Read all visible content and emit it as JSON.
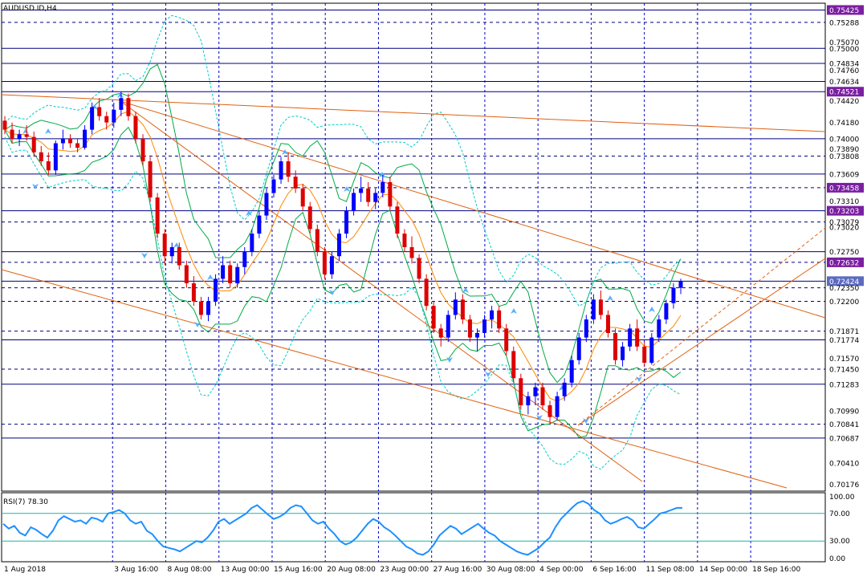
{
  "chart_data": {
    "type": "candlestick",
    "title": "AUDUSD.ID,H4",
    "symbol": "AUDUSD.ID",
    "timeframe": "H4",
    "price_axis": {
      "ylim": [
        0.701,
        0.755
      ],
      "tick_labels": [
        "0.75425",
        "0.75288",
        "0.75070",
        "0.75000",
        "0.74834",
        "0.74760",
        "0.74634",
        "0.74521",
        "0.74420",
        "0.74180",
        "0.74000",
        "0.73890",
        "0.73808",
        "0.73609",
        "0.73458",
        "0.73310",
        "0.73203",
        "0.73079",
        "0.73020",
        "0.72750",
        "0.72632",
        "0.72424",
        "0.72350",
        "0.72200",
        "0.71871",
        "0.71774",
        "0.71570",
        "0.71450",
        "0.71283",
        "0.70990",
        "0.70841",
        "0.70687",
        "0.70410",
        "0.70176"
      ],
      "highlighted_levels": [
        {
          "label": "0.75425",
          "color": "#7b1fa2"
        },
        {
          "label": "0.74521",
          "color": "#7b1fa2"
        },
        {
          "label": "0.73458",
          "color": "#7b1fa2"
        },
        {
          "label": "0.73203",
          "color": "#7b1fa2"
        },
        {
          "label": "0.72632",
          "color": "#7b1fa2"
        },
        {
          "label": "0.72424",
          "color": "#5c6bc0"
        }
      ],
      "current_price": "0.72424"
    },
    "time_axis": {
      "tick_labels": [
        "1 Aug 2018",
        "3 Aug 16:00",
        "8 Aug 08:00",
        "13 Aug 00:00",
        "15 Aug 16:00",
        "20 Aug 08:00",
        "23 Aug 00:00",
        "27 Aug 16:00",
        "30 Aug 08:00",
        "4 Sep 00:00",
        "6 Sep 16:00",
        "11 Sep 08:00",
        "14 Sep 00:00",
        "18 Sep 16:00"
      ]
    },
    "horizontal_levels_solid": [
      0.75425,
      0.75,
      0.74834,
      0.74634,
      0.74521,
      0.74,
      0.73609,
      0.73203,
      0.7275,
      0.72424,
      0.71774,
      0.71283,
      0.70687
    ],
    "horizontal_levels_dashed": [
      0.75288,
      0.73808,
      0.73458,
      0.73079,
      0.72632,
      0.7235,
      0.722,
      0.71871,
      0.7145,
      0.70841
    ],
    "rsi": {
      "label": "RSI(7) 78.30",
      "ylim": [
        0,
        100
      ],
      "levels": [
        30,
        70
      ],
      "tick_labels": [
        "100.00",
        "70.00",
        "30.00",
        "0.00"
      ],
      "values": [
        55,
        48,
        52,
        42,
        38,
        50,
        46,
        40,
        35,
        45,
        60,
        66,
        62,
        58,
        60,
        55,
        64,
        62,
        58,
        70,
        72,
        75,
        70,
        60,
        55,
        58,
        45,
        40,
        30,
        22,
        20,
        18,
        15,
        20,
        25,
        30,
        28,
        35,
        45,
        58,
        62,
        55,
        60,
        65,
        70,
        78,
        82,
        75,
        68,
        62,
        65,
        70,
        78,
        82,
        80,
        70,
        60,
        55,
        58,
        48,
        40,
        30,
        25,
        28,
        35,
        45,
        55,
        62,
        58,
        50,
        45,
        38,
        30,
        22,
        18,
        12,
        10,
        15,
        25,
        38,
        45,
        52,
        48,
        40,
        45,
        50,
        55,
        48,
        42,
        38,
        30,
        25,
        20,
        15,
        12,
        10,
        15,
        20,
        28,
        35,
        50,
        62,
        70,
        78,
        85,
        88,
        84,
        75,
        70,
        60,
        55,
        58,
        62,
        65,
        60,
        50,
        48,
        55,
        62,
        70,
        72,
        75,
        78,
        78
      ]
    },
    "candles": [
      [
        0.742,
        0.7425,
        0.7405,
        0.741
      ],
      [
        0.741,
        0.7418,
        0.7395,
        0.74
      ],
      [
        0.74,
        0.741,
        0.7392,
        0.7405
      ],
      [
        0.7405,
        0.7415,
        0.7398,
        0.7402
      ],
      [
        0.7402,
        0.7408,
        0.738,
        0.7385
      ],
      [
        0.7385,
        0.7392,
        0.737,
        0.7375
      ],
      [
        0.7375,
        0.7385,
        0.736,
        0.7365
      ],
      [
        0.7365,
        0.7398,
        0.736,
        0.7395
      ],
      [
        0.7395,
        0.741,
        0.7388,
        0.74
      ],
      [
        0.74,
        0.7405,
        0.739,
        0.7395
      ],
      [
        0.7395,
        0.74,
        0.7385,
        0.739
      ],
      [
        0.739,
        0.7415,
        0.7388,
        0.741
      ],
      [
        0.741,
        0.744,
        0.7405,
        0.7435
      ],
      [
        0.7435,
        0.7445,
        0.742,
        0.7425
      ],
      [
        0.7425,
        0.743,
        0.741,
        0.7418
      ],
      [
        0.7418,
        0.744,
        0.7412,
        0.7432
      ],
      [
        0.7432,
        0.7452,
        0.7425,
        0.7445
      ],
      [
        0.7445,
        0.745,
        0.742,
        0.7425
      ],
      [
        0.7425,
        0.743,
        0.7395,
        0.74
      ],
      [
        0.74,
        0.7405,
        0.737,
        0.7375
      ],
      [
        0.7375,
        0.738,
        0.733,
        0.7335
      ],
      [
        0.7335,
        0.734,
        0.729,
        0.7295
      ],
      [
        0.7295,
        0.73,
        0.726,
        0.727
      ],
      [
        0.727,
        0.7285,
        0.7262,
        0.728
      ],
      [
        0.728,
        0.7285,
        0.7255,
        0.726
      ],
      [
        0.726,
        0.7265,
        0.7235,
        0.724
      ],
      [
        0.724,
        0.7248,
        0.7215,
        0.722
      ],
      [
        0.722,
        0.7225,
        0.72,
        0.7205
      ],
      [
        0.7205,
        0.7225,
        0.7198,
        0.722
      ],
      [
        0.722,
        0.725,
        0.7215,
        0.7245
      ],
      [
        0.7245,
        0.727,
        0.724,
        0.726
      ],
      [
        0.726,
        0.7265,
        0.7235,
        0.724
      ],
      [
        0.724,
        0.7262,
        0.7235,
        0.7258
      ],
      [
        0.7258,
        0.728,
        0.725,
        0.7275
      ],
      [
        0.7275,
        0.73,
        0.727,
        0.7295
      ],
      [
        0.7295,
        0.732,
        0.729,
        0.7315
      ],
      [
        0.7315,
        0.7345,
        0.731,
        0.734
      ],
      [
        0.734,
        0.736,
        0.7335,
        0.7355
      ],
      [
        0.7355,
        0.738,
        0.735,
        0.7375
      ],
      [
        0.7375,
        0.7385,
        0.7352,
        0.7358
      ],
      [
        0.7358,
        0.7365,
        0.734,
        0.7345
      ],
      [
        0.7345,
        0.735,
        0.732,
        0.7325
      ],
      [
        0.7325,
        0.733,
        0.7295,
        0.73
      ],
      [
        0.73,
        0.7305,
        0.727,
        0.7275
      ],
      [
        0.7275,
        0.728,
        0.7245,
        0.725
      ],
      [
        0.725,
        0.7275,
        0.7245,
        0.727
      ],
      [
        0.727,
        0.73,
        0.7265,
        0.7295
      ],
      [
        0.7295,
        0.7325,
        0.729,
        0.732
      ],
      [
        0.732,
        0.7345,
        0.7315,
        0.734
      ],
      [
        0.734,
        0.7358,
        0.733,
        0.7345
      ],
      [
        0.7345,
        0.7352,
        0.7325,
        0.733
      ],
      [
        0.733,
        0.7345,
        0.7322,
        0.734
      ],
      [
        0.734,
        0.736,
        0.7335,
        0.7352
      ],
      [
        0.7352,
        0.7358,
        0.732,
        0.7325
      ],
      [
        0.7325,
        0.733,
        0.729,
        0.7295
      ],
      [
        0.7295,
        0.73,
        0.7275,
        0.728
      ],
      [
        0.728,
        0.7292,
        0.7262,
        0.7268
      ],
      [
        0.7268,
        0.7272,
        0.724,
        0.7245
      ],
      [
        0.7245,
        0.725,
        0.721,
        0.7215
      ],
      [
        0.7215,
        0.722,
        0.7185,
        0.719
      ],
      [
        0.719,
        0.7195,
        0.717,
        0.718
      ],
      [
        0.718,
        0.721,
        0.7175,
        0.7205
      ],
      [
        0.7205,
        0.723,
        0.72,
        0.7222
      ],
      [
        0.7222,
        0.7228,
        0.7195,
        0.72
      ],
      [
        0.72,
        0.7205,
        0.7175,
        0.718
      ],
      [
        0.718,
        0.719,
        0.7165,
        0.7185
      ],
      [
        0.7185,
        0.7205,
        0.718,
        0.72
      ],
      [
        0.72,
        0.7215,
        0.719,
        0.721
      ],
      [
        0.721,
        0.7215,
        0.7185,
        0.719
      ],
      [
        0.719,
        0.7195,
        0.716,
        0.7165
      ],
      [
        0.7165,
        0.717,
        0.713,
        0.7135
      ],
      [
        0.7135,
        0.714,
        0.71,
        0.7105
      ],
      [
        0.7105,
        0.712,
        0.7095,
        0.7115
      ],
      [
        0.7115,
        0.713,
        0.7105,
        0.7125
      ],
      [
        0.7125,
        0.713,
        0.71,
        0.7105
      ],
      [
        0.7105,
        0.711,
        0.7085,
        0.7092
      ],
      [
        0.7092,
        0.712,
        0.7088,
        0.7115
      ],
      [
        0.7115,
        0.7135,
        0.711,
        0.713
      ],
      [
        0.713,
        0.716,
        0.7125,
        0.7155
      ],
      [
        0.7155,
        0.7185,
        0.715,
        0.718
      ],
      [
        0.718,
        0.7205,
        0.7175,
        0.72
      ],
      [
        0.72,
        0.7228,
        0.7195,
        0.7222
      ],
      [
        0.7222,
        0.7232,
        0.72,
        0.7205
      ],
      [
        0.7205,
        0.721,
        0.718,
        0.7185
      ],
      [
        0.7185,
        0.719,
        0.715,
        0.7155
      ],
      [
        0.7155,
        0.7175,
        0.7148,
        0.717
      ],
      [
        0.717,
        0.7195,
        0.7165,
        0.719
      ],
      [
        0.719,
        0.72,
        0.7165,
        0.717
      ],
      [
        0.717,
        0.7175,
        0.7148,
        0.7152
      ],
      [
        0.7152,
        0.7185,
        0.715,
        0.718
      ],
      [
        0.718,
        0.7205,
        0.7175,
        0.72
      ],
      [
        0.72,
        0.7222,
        0.7195,
        0.7218
      ],
      [
        0.7218,
        0.724,
        0.7212,
        0.7235
      ],
      [
        0.7235,
        0.7245,
        0.7228,
        0.7242
      ]
    ]
  }
}
